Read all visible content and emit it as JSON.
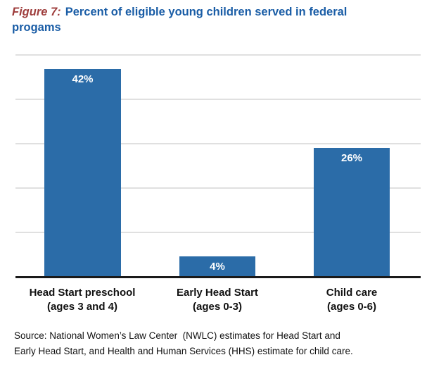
{
  "title": {
    "figure_label": "Figure 7:",
    "text": "Percent of eligible young children served in federal progams"
  },
  "chart_data": {
    "type": "bar",
    "title": "Percent of eligible young children served in federal progams",
    "categories": [
      {
        "line1": "Head Start preschool",
        "line2": "(ages 3 and 4)"
      },
      {
        "line1": "Early Head Start",
        "line2": "(ages 0-3)"
      },
      {
        "line1": "Child care",
        "line2": "(ages 0-6)"
      }
    ],
    "values": [
      42,
      4,
      26
    ],
    "value_labels": [
      "42%",
      "4%",
      "26%"
    ],
    "xlabel": "",
    "ylabel": "",
    "ylim": [
      0,
      45
    ],
    "y_axis_labels_visible": false,
    "grid": "horizontal",
    "gridline_count": 5,
    "legend": "none",
    "bar_color": "#2B6CA8",
    "gridline_color": "#E0E0E0",
    "axis_color": "#1A1A1A"
  },
  "source": {
    "lines": [
      "Source: National Women’s Law Center  (NWLC) estimates for Head Start and",
      "Early Head Start, and Health and Human Services (HHS) estimate for child care."
    ]
  },
  "colors": {
    "figure_label": "#9E3D3C",
    "title_text": "#1A5DA6",
    "bar": "#2B6CA8",
    "bar_value_text": "#FFFFFF",
    "gridline": "#E0E0E0",
    "axis": "#1A1A1A"
  }
}
